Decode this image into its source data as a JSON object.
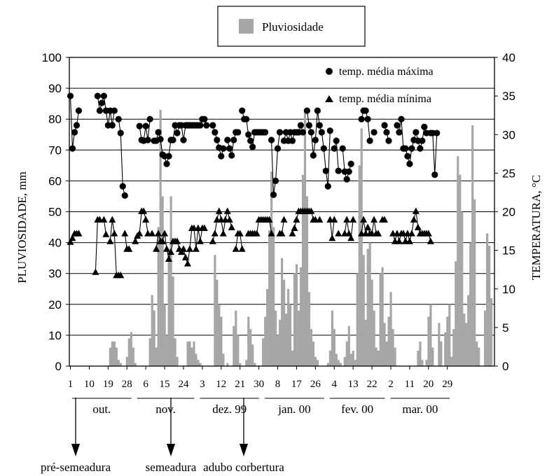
{
  "chart_data": {
    "type": "bar",
    "legend_box": {
      "label": "Pluviosidade"
    },
    "legend_inner": {
      "max_label": "temp. média máxima",
      "min_label": "temp. média mínima"
    },
    "ylabel_left": "PLUVIOSIDADE, mm",
    "ylabel_right": "TEMPERATURA, °C",
    "y_left": {
      "min": 0,
      "max": 100,
      "ticks": [
        "0",
        "10",
        "20",
        "30",
        "40",
        "50",
        "60",
        "70",
        "80",
        "90",
        "100"
      ]
    },
    "y_right": {
      "min": 0,
      "max": 40,
      "ticks": [
        "0",
        "5",
        "10",
        "15",
        "20",
        "25",
        "30",
        "35",
        "40"
      ]
    },
    "x_ticks": [
      "1",
      "10",
      "19",
      "28",
      "6",
      "15",
      "24",
      "3",
      "12",
      "21",
      "30",
      "8",
      "17",
      "26",
      "4",
      "13",
      "22",
      "2",
      "11",
      "20",
      "29"
    ],
    "month_labels": [
      "out.",
      "nov.",
      "dez. 99",
      "jan. 00",
      "fev. 00",
      "mar. 00"
    ],
    "events": [
      "pré-semeadura",
      "semeadura",
      "adubo corbertura"
    ],
    "grid": "horizontal",
    "colors": {
      "rain": "#a6a6a6",
      "text": "#000000",
      "grid": "#000000"
    },
    "series": [
      {
        "name": "Pluviosidade",
        "axis": "left",
        "kind": "bar",
        "values": [
          0,
          0,
          0,
          0,
          0,
          0,
          0,
          0,
          0,
          0,
          0,
          0,
          0,
          0,
          0,
          0,
          0,
          0,
          0,
          6,
          8,
          8,
          6,
          2,
          1,
          0,
          0,
          3,
          9,
          11,
          6,
          1,
          0,
          0,
          0,
          0,
          0,
          0,
          9,
          23,
          18,
          6,
          45,
          83,
          55,
          20,
          10,
          38,
          55,
          29,
          9,
          3,
          0,
          0,
          0,
          0,
          8,
          8,
          6,
          8,
          4,
          2,
          1,
          0,
          0,
          0,
          0,
          0,
          0,
          36,
          28,
          20,
          16,
          4,
          0,
          1,
          0,
          0,
          13,
          18,
          10,
          1,
          0,
          0,
          2,
          16,
          12,
          7,
          1,
          0,
          0,
          0,
          9,
          16,
          25,
          44,
          63,
          45,
          18,
          10,
          15,
          35,
          28,
          17,
          25,
          20,
          5,
          30,
          33,
          18,
          32,
          62,
          83,
          55,
          24,
          12,
          8,
          3,
          2,
          0,
          0,
          0,
          0,
          1,
          5,
          18,
          12,
          4,
          2,
          1,
          0,
          3,
          8,
          13,
          4,
          5,
          2,
          30,
          65,
          77,
          36,
          15,
          38,
          40,
          28,
          18,
          6,
          5,
          30,
          32,
          14,
          8,
          16,
          24,
          12,
          6,
          0,
          0,
          0,
          0,
          0,
          0,
          0,
          0,
          0,
          0,
          5,
          8,
          2,
          0,
          2,
          16,
          20,
          6,
          0,
          0,
          14,
          8,
          0,
          11,
          16,
          20,
          3,
          12,
          34,
          68,
          62,
          50,
          17,
          14,
          23,
          40,
          78,
          54,
          8,
          6,
          0,
          0,
          18,
          43,
          39,
          22,
          0
        ]
      },
      {
        "name": "temp. média máxima",
        "axis": "right",
        "kind": "line-circle",
        "values": [
          35.0,
          28.2,
          30.3,
          31.2,
          33.1,
          null,
          null,
          null,
          null,
          null,
          null,
          null,
          null,
          35.0,
          33.1,
          34.1,
          35.0,
          33.1,
          31.2,
          33.1,
          31.2,
          33.1,
          null,
          32.0,
          30.2,
          23.3,
          22.1,
          null,
          null,
          null,
          null,
          null,
          null,
          31.1,
          29.3,
          29.2,
          31.1,
          29.3,
          32.0,
          null,
          29.2,
          29.2,
          30.3,
          29.4,
          27.4,
          27.2,
          26.2,
          27.2,
          29.3,
          29.3,
          31.2,
          30.2,
          31.2,
          31.2,
          29.3,
          31.2,
          31.2,
          31.2,
          31.2,
          31.2,
          31.2,
          31.2,
          31.2,
          32.0,
          32.0,
          31.2,
          null,
          null,
          31.2,
          30.3,
          29.3,
          28.3,
          27.2,
          28.2,
          null,
          29.3,
          28.2,
          27.3,
          29.3,
          30.3,
          30.3,
          null,
          33.1,
          32.0,
          32.0,
          30.0,
          29.2,
          28.4,
          30.3,
          30.3,
          30.3,
          30.3,
          30.3,
          30.3,
          null,
          null,
          29.3,
          22.2,
          24.0,
          28.2,
          30.3,
          null,
          29.2,
          30.3,
          29.2,
          30.3,
          29.2,
          30.3,
          30.3,
          30.3,
          31.2,
          30.3,
          null,
          33.1,
          31.2,
          30.3,
          27.3,
          29.3,
          33.1,
          31.2,
          30.3,
          28.2,
          25.3,
          23.3,
          30.5,
          null,
          28.2,
          29.2,
          25.3,
          null,
          28.2,
          25.2,
          24.2,
          25.2,
          26.2,
          null,
          null,
          null,
          null,
          32.0,
          33.1,
          33.1,
          32.0,
          29.2,
          null,
          30.3,
          null,
          null,
          null,
          null,
          31.2,
          30.3,
          29.2,
          null,
          null,
          null,
          31.2,
          30.3,
          32.0,
          28.2,
          28.2,
          27.2,
          26.2,
          28.2,
          29.3,
          30.3,
          29.2,
          28.2,
          29.2,
          31.0,
          30.2,
          null,
          30.2,
          30.2,
          24.8,
          30.2,
          null
        ]
      },
      {
        "name": "temp. média mínima",
        "axis": "right",
        "kind": "line-triangle",
        "values": [
          16.1,
          16.6,
          17.2,
          17.2,
          17.2,
          null,
          null,
          null,
          null,
          null,
          null,
          null,
          12.2,
          19.0,
          19.0,
          null,
          19.0,
          17.1,
          null,
          16.2,
          19.0,
          17.2,
          11.8,
          11.8,
          11.8,
          null,
          17.2,
          15.2,
          15.2,
          null,
          null,
          16.2,
          16.9,
          17.2,
          20.1,
          20.1,
          19.0,
          17.2,
          null,
          17.2,
          null,
          15.2,
          17.2,
          16.2,
          16.2,
          17.2,
          15.2,
          13.9,
          14.8,
          16.2,
          16.2,
          16.2,
          15.2,
          14.8,
          15.2,
          14.1,
          13.3,
          15.2,
          17.9,
          17.9,
          15.2,
          17.9,
          16.2,
          17.9,
          17.9,
          null,
          null,
          null,
          16.2,
          17.2,
          19.0,
          20.1,
          19.0,
          17.2,
          19.0,
          20.1,
          19.0,
          18.0,
          null,
          15.2,
          17.2,
          17.2,
          15.2,
          null,
          null,
          17.2,
          17.2,
          17.2,
          17.2,
          17.2,
          19.0,
          19.0,
          19.0,
          19.0,
          19.0,
          19.0,
          17.2,
          null,
          null,
          null,
          17.2,
          17.2,
          19.0,
          null,
          null,
          null,
          17.2,
          17.9,
          19.0,
          20.1,
          20.1,
          20.1,
          20.1,
          20.1,
          20.1,
          20.1,
          19.0,
          19.0,
          null,
          19.0,
          null,
          null,
          null,
          null,
          19.0,
          16.6,
          19.0,
          null,
          17.2,
          null,
          null,
          17.2,
          19.0,
          17.2,
          16.6,
          19.0,
          null,
          null,
          null,
          17.2,
          19.0,
          17.2,
          18.0,
          17.2,
          17.2,
          19.0,
          17.2,
          17.2,
          null,
          19.0,
          19.0,
          null,
          null,
          null,
          17.2,
          16.2,
          17.2,
          16.2,
          17.2,
          17.2,
          16.2,
          17.2,
          16.2,
          17.2,
          19.0,
          20.1,
          18.0,
          17.2,
          17.2,
          17.2,
          17.2,
          17.2,
          16.2
        ]
      }
    ]
  }
}
